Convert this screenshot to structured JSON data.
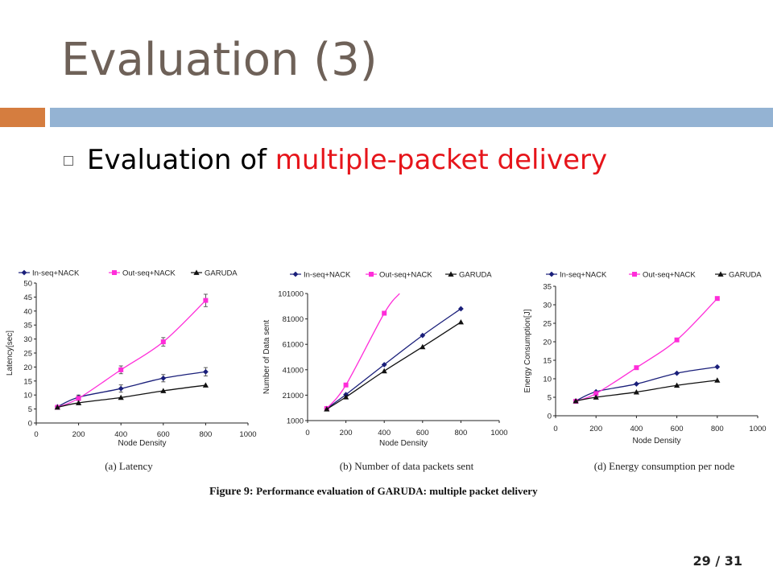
{
  "slide": {
    "title": "Evaluation (3)",
    "bullet_prefix": "Evaluation of ",
    "bullet_highlight": "multiple-packet delivery",
    "figure_label": "Figure 9:",
    "figure_text": "Performance evaluation of GARUDA: multiple packet delivery",
    "page_current": "29",
    "page_total": "/ 31",
    "colors": {
      "title": "#6e6158",
      "accent_orange": "#d57d3f",
      "accent_blue": "#94b3d3",
      "highlight": "#e6151b"
    }
  },
  "chart_data": [
    {
      "type": "line",
      "caption": "(a) Latency",
      "xlabel": "Node Density",
      "ylabel": "Latency[sec]",
      "xlim": [
        0,
        1000
      ],
      "ylim": [
        0,
        50
      ],
      "xticks": [
        0,
        200,
        400,
        600,
        800,
        1000
      ],
      "yticks": [
        0,
        5,
        10,
        15,
        20,
        25,
        30,
        35,
        40,
        45,
        50
      ],
      "grid": false,
      "legend_position": "top",
      "series": [
        {
          "name": "In-seq+NACK",
          "color": "#1a1f7a",
          "marker": "diamond",
          "x": [
            100,
            200,
            400,
            600,
            800
          ],
          "y": [
            5.8,
            9.2,
            12.3,
            16.0,
            18.3
          ],
          "err": [
            0.5,
            0.8,
            1.3,
            1.3,
            1.5
          ]
        },
        {
          "name": "Out-seq+NACK",
          "color": "#ff2dd9",
          "marker": "square",
          "x": [
            100,
            200,
            400,
            600,
            800
          ],
          "y": [
            5.6,
            8.8,
            19.0,
            29.0,
            43.8
          ],
          "err": [
            0.4,
            0.8,
            1.4,
            1.5,
            2.2
          ]
        },
        {
          "name": "GARUDA",
          "color": "#111111",
          "marker": "triangle",
          "x": [
            100,
            200,
            400,
            600,
            800
          ],
          "y": [
            5.6,
            7.2,
            9.1,
            11.5,
            13.5
          ],
          "err": []
        }
      ]
    },
    {
      "type": "line",
      "caption": "(b) Number of data packets sent",
      "xlabel": "Node Density",
      "ylabel": "Number of Data sent",
      "xlim": [
        0,
        1000
      ],
      "ylim": [
        1000,
        101000
      ],
      "xticks": [
        0,
        200,
        400,
        600,
        800,
        1000
      ],
      "yticks": [
        1000,
        21000,
        41000,
        61000,
        81000,
        101000
      ],
      "grid": false,
      "legend_position": "top",
      "series": [
        {
          "name": "In-seq+NACK",
          "color": "#1a1f7a",
          "marker": "diamond",
          "x": [
            100,
            200,
            400,
            600,
            800
          ],
          "y": [
            10500,
            21500,
            45000,
            68000,
            89000
          ],
          "err": []
        },
        {
          "name": "Out-seq+NACK",
          "color": "#ff2dd9",
          "marker": "square",
          "x": [
            100,
            200,
            400,
            480
          ],
          "y": [
            10500,
            29000,
            85500,
            101000
          ],
          "err": []
        },
        {
          "name": "GARUDA",
          "color": "#111111",
          "marker": "triangle",
          "x": [
            100,
            200,
            400,
            600,
            800
          ],
          "y": [
            10000,
            19500,
            40000,
            59000,
            78500
          ],
          "err": []
        }
      ]
    },
    {
      "type": "line",
      "caption": "(d) Energy consumption per node",
      "xlabel": "Node Density",
      "ylabel": "Energy Consumption[J]",
      "xlim": [
        0,
        1000
      ],
      "ylim": [
        0,
        35
      ],
      "xticks": [
        0,
        200,
        400,
        600,
        800,
        1000
      ],
      "yticks": [
        0,
        5,
        10,
        15,
        20,
        25,
        30,
        35
      ],
      "grid": false,
      "legend_position": "top",
      "series": [
        {
          "name": "In-seq+NACK",
          "color": "#1a1f7a",
          "marker": "diamond",
          "x": [
            100,
            200,
            400,
            600,
            800
          ],
          "y": [
            4.0,
            6.5,
            8.6,
            11.5,
            13.2
          ],
          "err": []
        },
        {
          "name": "Out-seq+NACK",
          "color": "#ff2dd9",
          "marker": "square",
          "x": [
            100,
            200,
            400,
            600,
            800
          ],
          "y": [
            3.9,
            6.0,
            13.0,
            20.5,
            31.7
          ],
          "err": []
        },
        {
          "name": "GARUDA",
          "color": "#111111",
          "marker": "triangle",
          "x": [
            100,
            200,
            400,
            600,
            800
          ],
          "y": [
            4.0,
            5.0,
            6.4,
            8.2,
            9.6
          ],
          "err": []
        }
      ]
    }
  ]
}
